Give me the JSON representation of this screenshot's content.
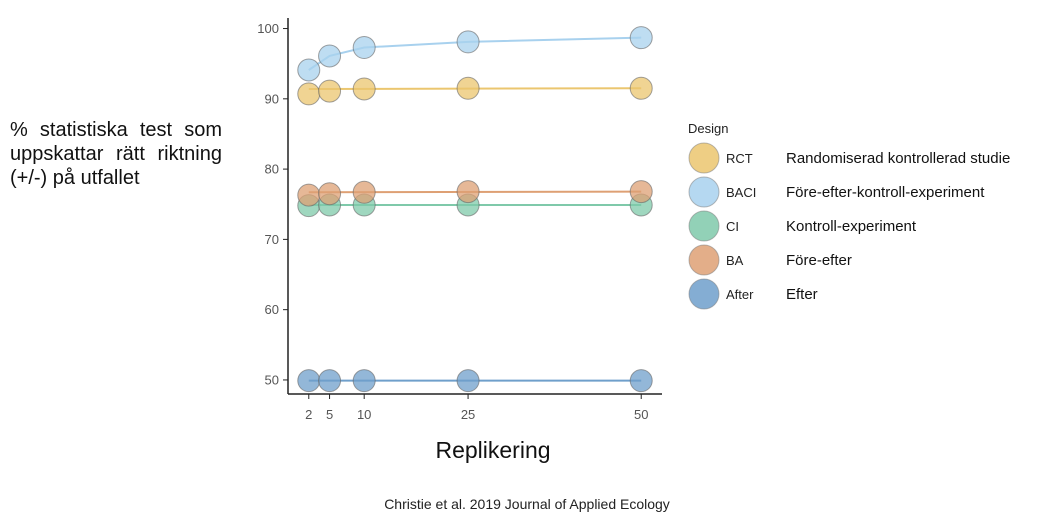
{
  "y_axis_text": "% statistiska test som uppskattar rätt riktning (+/-) på utfallet",
  "caption": "Christie et al. 2019 Journal of Applied Ecology",
  "chart_data": {
    "type": "scatter",
    "xlabel": "Replikering",
    "ylabel": "% statistiska test som uppskattar rätt riktning (+/-) på utfallet",
    "x_ticks": [
      2,
      5,
      10,
      25,
      50
    ],
    "y_ticks": [
      50,
      60,
      70,
      80,
      90,
      100
    ],
    "xlim": [
      -1,
      53
    ],
    "ylim": [
      48,
      101.5
    ],
    "legend_title": "Design",
    "legend_position": "right",
    "series": [
      {
        "code": "RCT",
        "name": "Randomiserad kontrollerad studie",
        "color": "#EBC66F",
        "x": [
          2,
          5,
          10,
          25,
          50
        ],
        "y": [
          90.7,
          91.1,
          91.4,
          91.5,
          91.5
        ],
        "line": [
          91.4,
          91.5
        ]
      },
      {
        "code": "BACI",
        "name": "Före-efter-kontroll-experiment",
        "color": "#A8D1EE",
        "x": [
          2,
          5,
          10,
          25,
          50
        ],
        "y": [
          94.1,
          96.1,
          97.3,
          98.1,
          98.7
        ],
        "line": null
      },
      {
        "code": "CI",
        "name": "Kontroll-experiment",
        "color": "#7FC9AA",
        "x": [
          2,
          5,
          10,
          25,
          50
        ],
        "y": [
          74.8,
          74.9,
          74.9,
          74.9,
          74.9
        ],
        "line": [
          74.9,
          74.9
        ]
      },
      {
        "code": "BA",
        "name": "Före-efter",
        "color": "#DEA074",
        "x": [
          2,
          5,
          10,
          25,
          50
        ],
        "y": [
          76.3,
          76.5,
          76.7,
          76.8,
          76.8
        ],
        "line": [
          76.7,
          76.8
        ]
      },
      {
        "code": "After",
        "name": "Efter",
        "color": "#6F9FCB",
        "x": [
          2,
          5,
          10,
          25,
          50
        ],
        "y": [
          49.9,
          49.9,
          49.9,
          49.9,
          49.9
        ],
        "line": [
          49.9,
          49.9
        ]
      }
    ]
  }
}
